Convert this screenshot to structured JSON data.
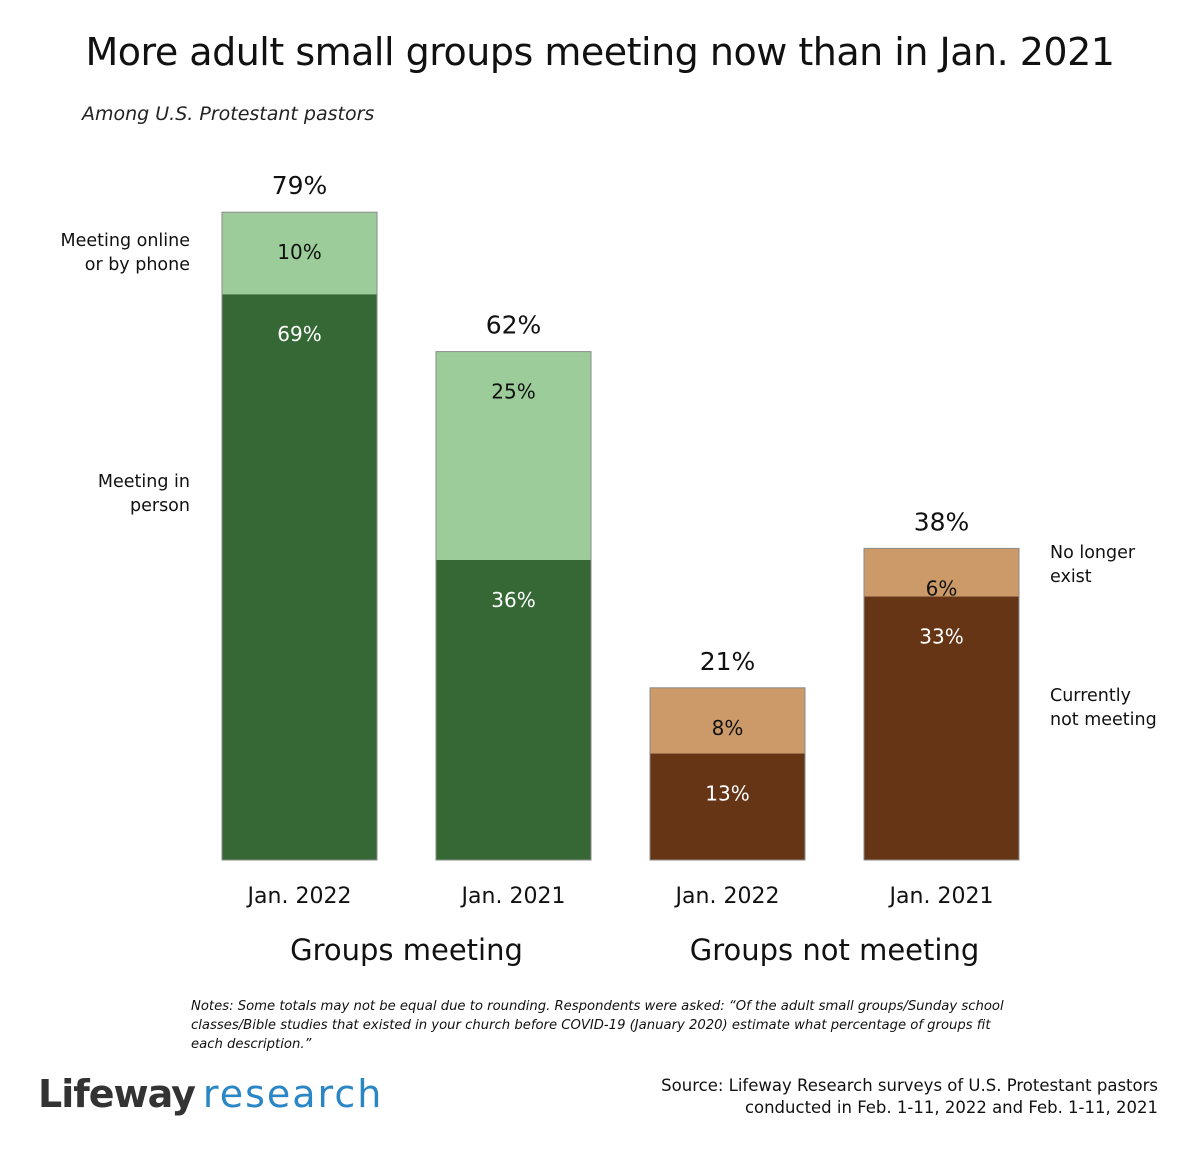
{
  "title": "More adult small groups meeting now than in Jan. 2021",
  "subtitle": "Among U.S. Protestant pastors",
  "side_labels": {
    "online_line1": "Meeting online",
    "online_line2": "or by phone",
    "inperson_line1": "Meeting in",
    "inperson_line2": "person",
    "nolonger_line1": "No longer",
    "nolonger_line2": "exist",
    "notmeeting_line1": "Currently",
    "notmeeting_line2": "not meeting"
  },
  "notes": "Notes: Some totals may not be equal due to rounding. Respondents were asked: “Of the adult small groups/Sunday school classes/Bible studies that existed in your church before COVID-19 (January 2020) estimate what percentage of groups fit each description.”",
  "logo": {
    "brand": "Lifeway",
    "sub": "research"
  },
  "source_line1": "Source: Lifeway Research surveys of U.S. Protestant pastors",
  "source_line2": "conducted in Feb. 1-11, 2022 and Feb. 1-11, 2021",
  "colors": {
    "in_person": "#356835",
    "online": "#9bcc99",
    "not_meeting": "#663516",
    "no_longer_exist": "#cc9a68"
  },
  "chart_data": {
    "type": "bar",
    "stacked": true,
    "title": "More adult small groups meeting now than in Jan. 2021",
    "subtitle": "Among U.S. Protestant pastors",
    "categories": [
      "Jan. 2022",
      "Jan. 2021",
      "Jan. 2022",
      "Jan. 2021"
    ],
    "groups": [
      {
        "label": "Groups meeting",
        "category_indices": [
          0,
          1
        ]
      },
      {
        "label": "Groups not meeting",
        "category_indices": [
          2,
          3
        ]
      }
    ],
    "bars": [
      {
        "category": "Jan. 2022",
        "group": "Groups meeting",
        "total": 79,
        "total_label": "79%",
        "segments": [
          {
            "name": "Meeting in person",
            "value": 69,
            "label": "69%",
            "color": "#356835",
            "text_color": "#ffffff"
          },
          {
            "name": "Meeting online or by phone",
            "value": 10,
            "label": "10%",
            "color": "#9bcc99",
            "text_color": "#111111"
          }
        ]
      },
      {
        "category": "Jan. 2021",
        "group": "Groups meeting",
        "total": 62,
        "total_label": "62%",
        "segments": [
          {
            "name": "Meeting in person",
            "value": 36,
            "label": "36%",
            "color": "#356835",
            "text_color": "#ffffff"
          },
          {
            "name": "Meeting online or by phone",
            "value": 25,
            "label": "25%",
            "color": "#9bcc99",
            "text_color": "#111111"
          }
        ]
      },
      {
        "category": "Jan. 2022",
        "group": "Groups not meeting",
        "total": 21,
        "total_label": "21%",
        "segments": [
          {
            "name": "Currently not meeting",
            "value": 13,
            "label": "13%",
            "color": "#663516",
            "text_color": "#ffffff"
          },
          {
            "name": "No longer exist",
            "value": 8,
            "label": "8%",
            "color": "#cc9a68",
            "text_color": "#111111"
          }
        ]
      },
      {
        "category": "Jan. 2021",
        "group": "Groups not meeting",
        "total": 38,
        "total_label": "38%",
        "segments": [
          {
            "name": "Currently not meeting",
            "value": 33,
            "label": "33%",
            "color": "#663516",
            "text_color": "#ffffff"
          },
          {
            "name": "No longer exist",
            "value": 6,
            "label": "6%",
            "color": "#cc9a68",
            "text_color": "#111111"
          }
        ]
      }
    ],
    "series": [
      {
        "name": "Meeting in person",
        "values": [
          69,
          36,
          null,
          null
        ]
      },
      {
        "name": "Meeting online or by phone",
        "values": [
          10,
          25,
          null,
          null
        ]
      },
      {
        "name": "Currently not meeting",
        "values": [
          null,
          null,
          13,
          33
        ]
      },
      {
        "name": "No longer exist",
        "values": [
          null,
          null,
          8,
          6
        ]
      }
    ],
    "xlabel": "",
    "ylabel": "",
    "ylim": [
      0,
      80
    ],
    "grid": false,
    "legend": "direct labels beside bars (left and right)"
  }
}
